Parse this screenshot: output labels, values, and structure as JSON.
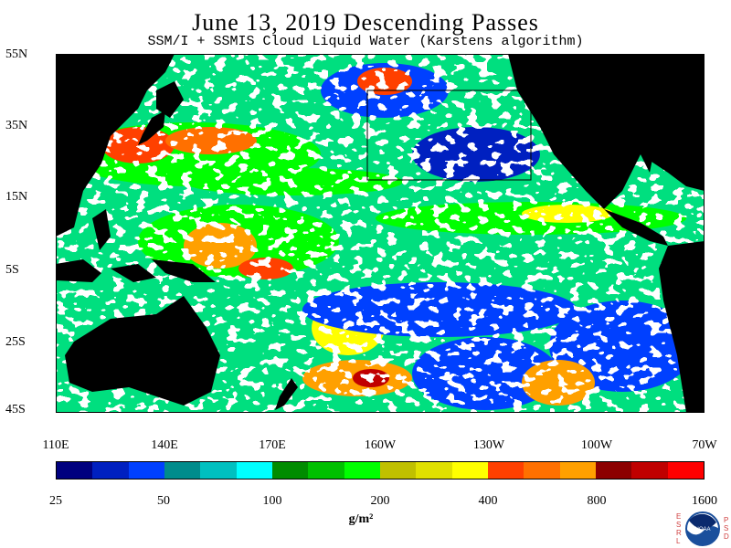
{
  "header": {
    "title": "June 13, 2019  Descending Passes",
    "subtitle": "SSM/I + SSMIS Cloud Liquid Water (Karstens algorithm)"
  },
  "map": {
    "lat_labels": [
      "55N",
      "35N",
      "15N",
      "5S",
      "25S",
      "45S"
    ],
    "lon_labels": [
      "110E",
      "140E",
      "170E",
      "160W",
      "130W",
      "100W",
      "70W"
    ],
    "colors": {
      "land": "#000000",
      "no_data": "#ffffff",
      "box_outline": "#000000"
    }
  },
  "colorbar": {
    "tick_labels": [
      "25",
      "50",
      "100",
      "200",
      "400",
      "800",
      "1600"
    ],
    "units": "g/m²",
    "colors": [
      "#00007f",
      "#0020c0",
      "#0040ff",
      "#008c8c",
      "#00c0c0",
      "#00ffff",
      "#008c00",
      "#00c000",
      "#00ff00",
      "#c0c000",
      "#e0e000",
      "#ffff00",
      "#ff4000",
      "#ff7000",
      "#ffa000",
      "#8c0000",
      "#c00000",
      "#ff0000"
    ]
  },
  "logo": {
    "left_letters": "ESRL",
    "right_letters": "PSD",
    "center_text": "NOAA"
  }
}
